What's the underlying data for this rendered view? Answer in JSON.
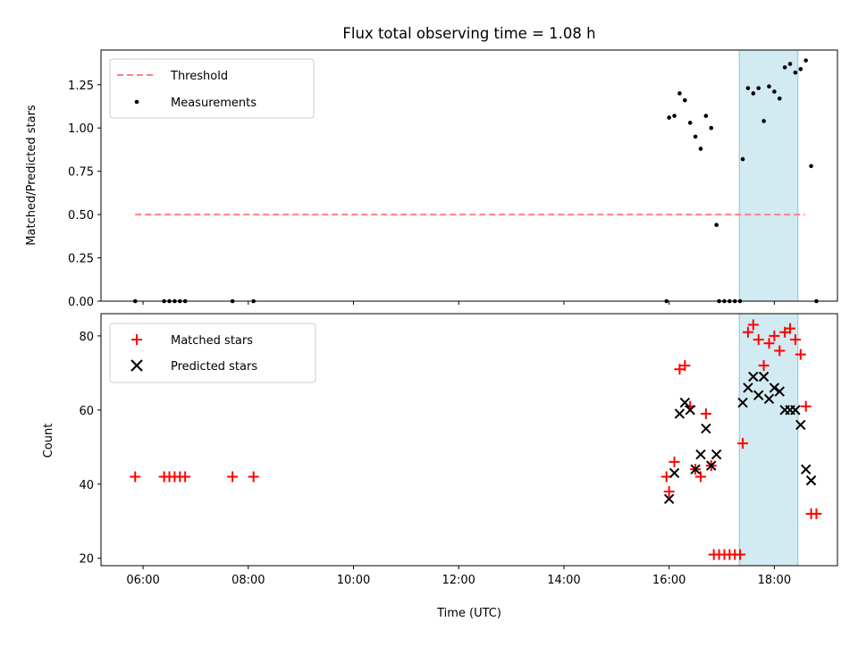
{
  "chart_data": [
    {
      "type": "scatter",
      "title": "Flux total observing time = 1.08 h",
      "xlabel": "",
      "ylabel": "Matched/Predicted stars",
      "xlim": [
        "05:12",
        "19:12"
      ],
      "ylim": [
        0,
        1.45
      ],
      "yticks": [
        0.0,
        0.25,
        0.5,
        0.75,
        1.0,
        1.25
      ],
      "ytick_labels": [
        "0.00",
        "0.25",
        "0.50",
        "0.75",
        "1.00",
        "1.25"
      ],
      "grid": false,
      "legend_position": "upper left",
      "highlight_span": {
        "x": [
          "17:20",
          "18:27"
        ],
        "color": "#add8e6"
      },
      "series": [
        {
          "name": "Threshold",
          "kind": "dashed-line",
          "color": "#ff8080",
          "x": [
            "05:51",
            "18:35"
          ],
          "y": [
            0.5,
            0.5
          ]
        },
        {
          "name": "Measurements",
          "kind": "points",
          "color": "#000000",
          "points": [
            [
              "05:51",
              0
            ],
            [
              "06:24",
              0
            ],
            [
              "06:30",
              0
            ],
            [
              "06:36",
              0
            ],
            [
              "06:42",
              0
            ],
            [
              "06:48",
              0
            ],
            [
              "07:42",
              0
            ],
            [
              "08:06",
              0
            ],
            [
              "15:57",
              0
            ],
            [
              "16:00",
              1.06
            ],
            [
              "16:06",
              1.07
            ],
            [
              "16:12",
              1.2
            ],
            [
              "16:18",
              1.16
            ],
            [
              "16:24",
              1.03
            ],
            [
              "16:30",
              0.95
            ],
            [
              "16:36",
              0.88
            ],
            [
              "16:42",
              1.07
            ],
            [
              "16:48",
              1.0
            ],
            [
              "16:54",
              0.44
            ],
            [
              "16:57",
              0
            ],
            [
              "17:03",
              0
            ],
            [
              "17:09",
              0
            ],
            [
              "17:15",
              0
            ],
            [
              "17:21",
              0
            ],
            [
              "17:24",
              0.82
            ],
            [
              "17:30",
              1.23
            ],
            [
              "17:36",
              1.2
            ],
            [
              "17:42",
              1.23
            ],
            [
              "17:48",
              1.04
            ],
            [
              "17:54",
              1.24
            ],
            [
              "18:00",
              1.21
            ],
            [
              "18:06",
              1.17
            ],
            [
              "18:12",
              1.35
            ],
            [
              "18:18",
              1.37
            ],
            [
              "18:24",
              1.32
            ],
            [
              "18:30",
              1.34
            ],
            [
              "18:36",
              1.39
            ],
            [
              "18:42",
              0.78
            ],
            [
              "18:48",
              0
            ]
          ]
        }
      ]
    },
    {
      "type": "scatter",
      "title": "",
      "xlabel": "Time (UTC)",
      "ylabel": "Count",
      "xlim": [
        "05:12",
        "19:12"
      ],
      "ylim": [
        18,
        86
      ],
      "xticks": [
        "06:00",
        "08:00",
        "10:00",
        "12:00",
        "14:00",
        "16:00",
        "18:00"
      ],
      "yticks": [
        20,
        40,
        60,
        80
      ],
      "grid": false,
      "legend_position": "upper left",
      "highlight_span": {
        "x": [
          "17:20",
          "18:27"
        ],
        "color": "#add8e6"
      },
      "series": [
        {
          "name": "Matched stars",
          "marker": "+",
          "color": "#ff0000",
          "points": [
            [
              "05:51",
              42
            ],
            [
              "06:24",
              42
            ],
            [
              "06:30",
              42
            ],
            [
              "06:36",
              42
            ],
            [
              "06:42",
              42
            ],
            [
              "06:48",
              42
            ],
            [
              "07:42",
              42
            ],
            [
              "08:06",
              42
            ],
            [
              "15:57",
              42
            ],
            [
              "16:00",
              38
            ],
            [
              "16:06",
              46
            ],
            [
              "16:12",
              71
            ],
            [
              "16:18",
              72
            ],
            [
              "16:24",
              61
            ],
            [
              "16:30",
              44
            ],
            [
              "16:36",
              42
            ],
            [
              "16:42",
              59
            ],
            [
              "16:48",
              45
            ],
            [
              "16:51",
              21
            ],
            [
              "16:57",
              21
            ],
            [
              "17:03",
              21
            ],
            [
              "17:09",
              21
            ],
            [
              "17:15",
              21
            ],
            [
              "17:21",
              21
            ],
            [
              "17:24",
              51
            ],
            [
              "17:30",
              81
            ],
            [
              "17:36",
              83
            ],
            [
              "17:42",
              79
            ],
            [
              "17:48",
              72
            ],
            [
              "17:54",
              78
            ],
            [
              "18:00",
              80
            ],
            [
              "18:06",
              76
            ],
            [
              "18:12",
              81
            ],
            [
              "18:18",
              82
            ],
            [
              "18:24",
              79
            ],
            [
              "18:30",
              75
            ],
            [
              "18:36",
              61
            ],
            [
              "18:42",
              32
            ],
            [
              "18:48",
              32
            ]
          ]
        },
        {
          "name": "Predicted stars",
          "marker": "x",
          "color": "#000000",
          "points": [
            [
              "16:00",
              36
            ],
            [
              "16:06",
              43
            ],
            [
              "16:12",
              59
            ],
            [
              "16:18",
              62
            ],
            [
              "16:24",
              60
            ],
            [
              "16:30",
              44
            ],
            [
              "16:36",
              48
            ],
            [
              "16:42",
              55
            ],
            [
              "16:48",
              45
            ],
            [
              "16:54",
              48
            ],
            [
              "17:24",
              62
            ],
            [
              "17:30",
              66
            ],
            [
              "17:36",
              69
            ],
            [
              "17:42",
              64
            ],
            [
              "17:48",
              69
            ],
            [
              "17:54",
              63
            ],
            [
              "18:00",
              66
            ],
            [
              "18:06",
              65
            ],
            [
              "18:12",
              60
            ],
            [
              "18:18",
              60
            ],
            [
              "18:24",
              60
            ],
            [
              "18:30",
              56
            ],
            [
              "18:36",
              44
            ],
            [
              "18:42",
              41
            ]
          ]
        }
      ]
    }
  ]
}
